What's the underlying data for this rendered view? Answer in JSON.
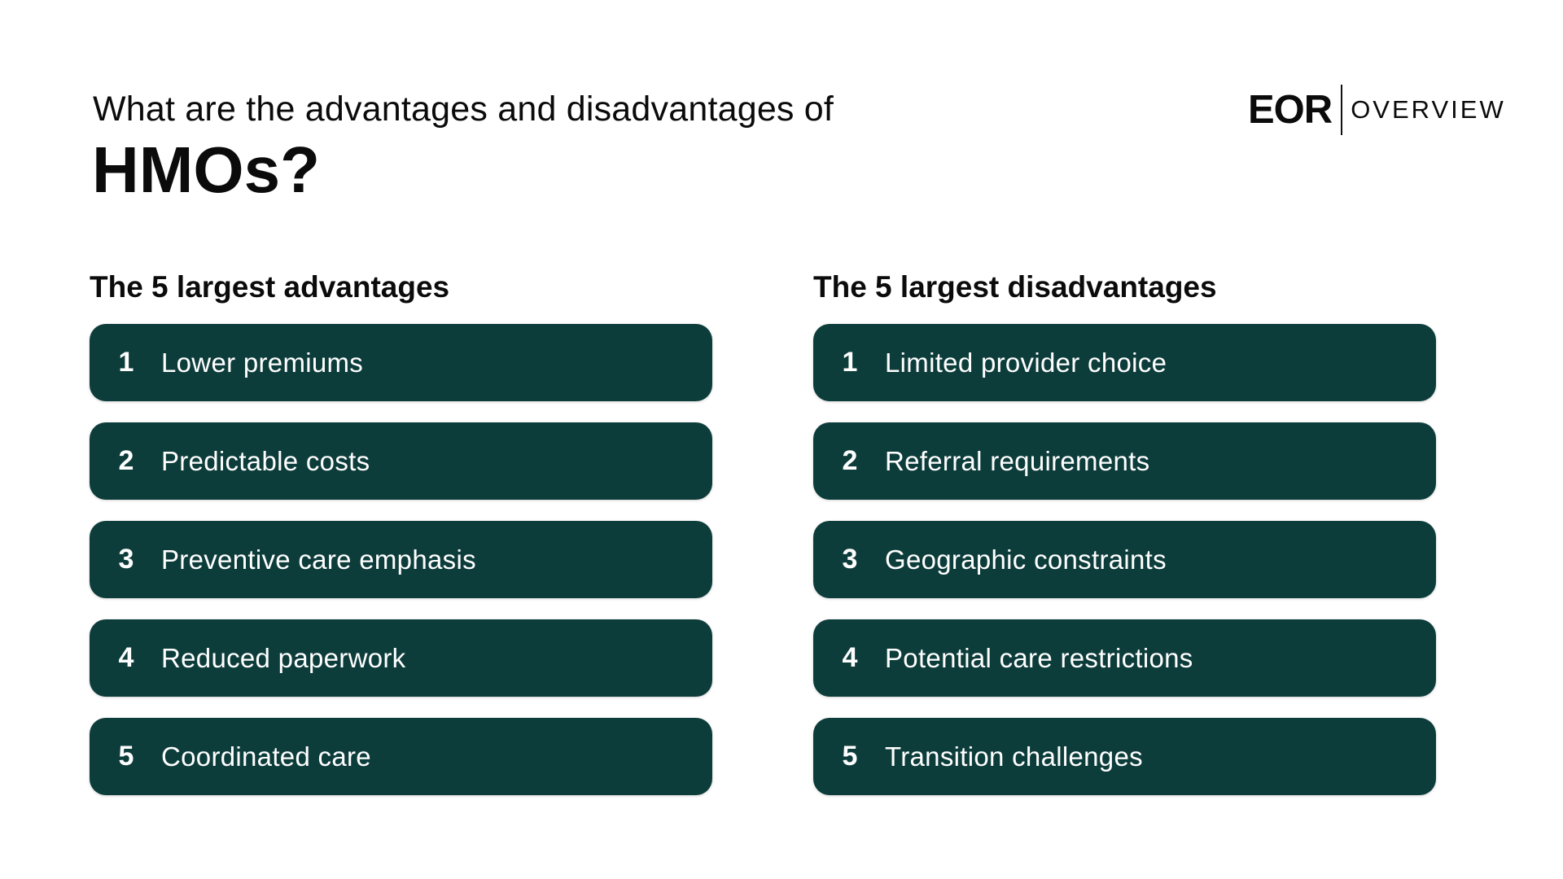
{
  "header": {
    "subtitle": "What are the advantages and disadvantages of",
    "title": "HMOs?"
  },
  "logo": {
    "mark": "EOR",
    "word": "OVERVIEW"
  },
  "colors": {
    "card_background": "#0d3d3b",
    "card_text": "#ffffff",
    "page_background": "#ffffff",
    "heading_text": "#0b0b0b"
  },
  "advantages": {
    "heading": "The 5 largest advantages",
    "items": [
      {
        "number": "1",
        "label": "Lower premiums"
      },
      {
        "number": "2",
        "label": "Predictable costs"
      },
      {
        "number": "3",
        "label": "Preventive care emphasis"
      },
      {
        "number": "4",
        "label": "Reduced paperwork"
      },
      {
        "number": "5",
        "label": "Coordinated care"
      }
    ]
  },
  "disadvantages": {
    "heading": "The 5 largest disadvantages",
    "items": [
      {
        "number": "1",
        "label": "Limited provider choice"
      },
      {
        "number": "2",
        "label": "Referral requirements"
      },
      {
        "number": "3",
        "label": "Geographic constraints"
      },
      {
        "number": "4",
        "label": "Potential care restrictions"
      },
      {
        "number": "5",
        "label": "Transition challenges"
      }
    ]
  }
}
